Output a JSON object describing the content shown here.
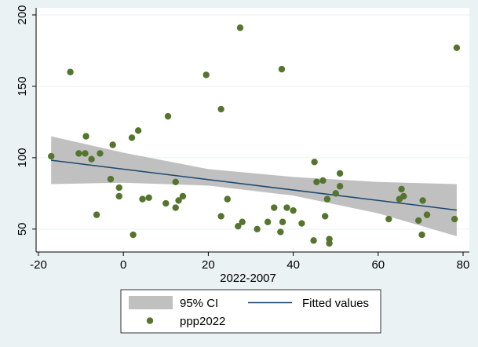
{
  "chart_data": {
    "type": "scatter",
    "xlabel": "2022-2007",
    "ylabel": "",
    "xlim": [
      -20,
      80
    ],
    "ylim": [
      40,
      200
    ],
    "x_ticks": [
      -20,
      0,
      20,
      40,
      60,
      80
    ],
    "y_ticks": [
      50,
      100,
      150,
      200
    ],
    "grid": "horizontal",
    "legend_position": "bottom",
    "colors": {
      "background": "#eaf2f3",
      "plot_background": "#ffffff",
      "ci_band": "#c0c0c0",
      "fit_line": "#1a476f",
      "points": "#55752f",
      "gridline": "#eaf2f3"
    },
    "legend": {
      "ci_label": "95% CI",
      "fit_label": "Fitted values",
      "scatter_label": "ppp2022"
    },
    "ci_band": {
      "x": [
        -17,
        0,
        20,
        40,
        60,
        78.5
      ],
      "lower": [
        81.5,
        82.5,
        80.5,
        73.5,
        61.0,
        45.0
      ],
      "upper": [
        115.0,
        103.5,
        92.0,
        86.5,
        83.0,
        81.5
      ]
    },
    "fitted_line": {
      "x": [
        -17,
        78.5
      ],
      "y": [
        98.2,
        63.3
      ]
    },
    "series": [
      {
        "name": "ppp2022",
        "points": [
          [
            -17,
            101
          ],
          [
            -12.5,
            160
          ],
          [
            -10.5,
            103
          ],
          [
            -9,
            103
          ],
          [
            -8.8,
            115
          ],
          [
            -7.5,
            99
          ],
          [
            -6.3,
            60
          ],
          [
            -5.5,
            103
          ],
          [
            -3,
            85
          ],
          [
            -2.5,
            109
          ],
          [
            -1,
            73
          ],
          [
            -1,
            79
          ],
          [
            2,
            114
          ],
          [
            2.3,
            46
          ],
          [
            3.5,
            119
          ],
          [
            4.5,
            71
          ],
          [
            6,
            72
          ],
          [
            10,
            68
          ],
          [
            10.5,
            129
          ],
          [
            12.3,
            65
          ],
          [
            12.3,
            83
          ],
          [
            13,
            70
          ],
          [
            14,
            73
          ],
          [
            19.5,
            158
          ],
          [
            23,
            134
          ],
          [
            23,
            59
          ],
          [
            24.5,
            71
          ],
          [
            27,
            52
          ],
          [
            27.5,
            191
          ],
          [
            28,
            55
          ],
          [
            31.5,
            50
          ],
          [
            34,
            55
          ],
          [
            35.5,
            65
          ],
          [
            37,
            48
          ],
          [
            37.3,
            162
          ],
          [
            37.5,
            55
          ],
          [
            38.5,
            65
          ],
          [
            40,
            63
          ],
          [
            42,
            54
          ],
          [
            44.8,
            42
          ],
          [
            45,
            97
          ],
          [
            45.5,
            83
          ],
          [
            47,
            84
          ],
          [
            47.5,
            59
          ],
          [
            48,
            71
          ],
          [
            48.5,
            43
          ],
          [
            48.5,
            40
          ],
          [
            50,
            75
          ],
          [
            51,
            80
          ],
          [
            51,
            89
          ],
          [
            62.5,
            57
          ],
          [
            65,
            71
          ],
          [
            65.5,
            78
          ],
          [
            66,
            73
          ],
          [
            69.5,
            56
          ],
          [
            70.3,
            46
          ],
          [
            70.5,
            70
          ],
          [
            71.5,
            60
          ],
          [
            78,
            57
          ],
          [
            78.5,
            177
          ]
        ]
      }
    ]
  }
}
